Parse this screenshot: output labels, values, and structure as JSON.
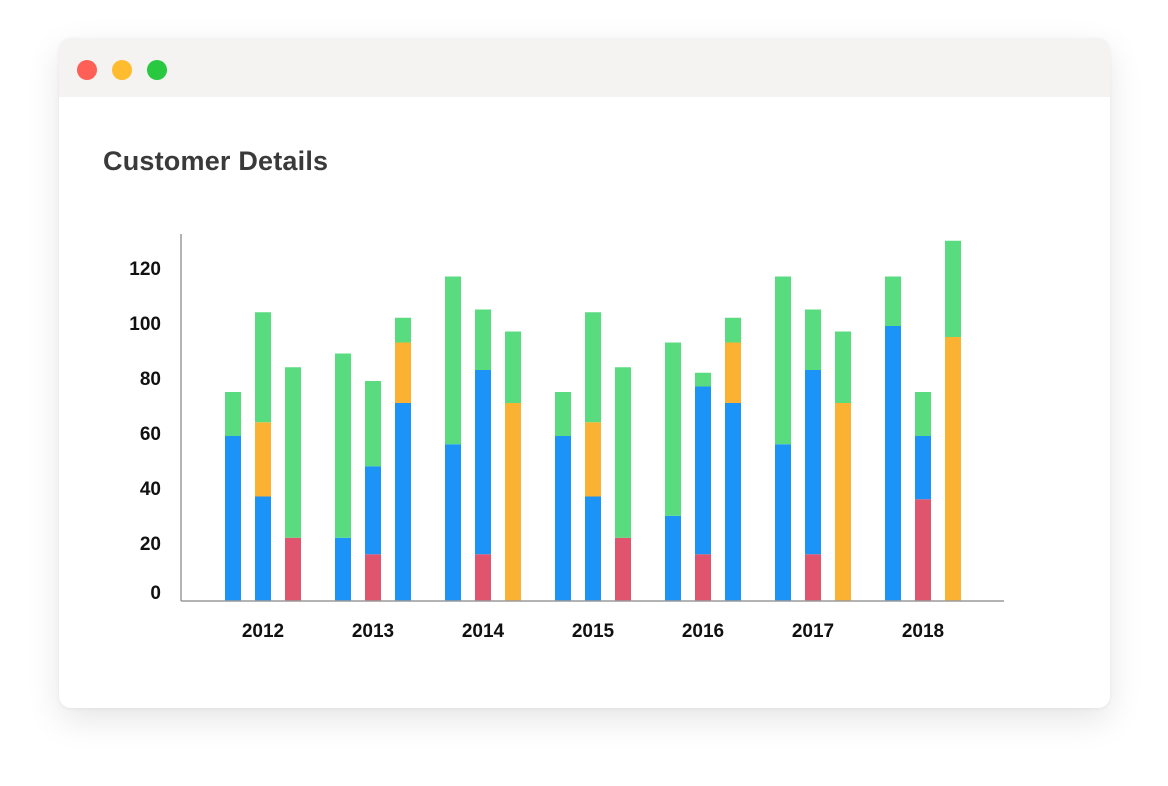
{
  "window": {
    "controls": [
      "close",
      "minimize",
      "maximize"
    ]
  },
  "chart_data": {
    "type": "bar",
    "stacked": true,
    "title": "Customer Details",
    "xlabel": "",
    "ylabel": "",
    "categories": [
      "2012",
      "2013",
      "2014",
      "2015",
      "2016",
      "2017",
      "2018"
    ],
    "bars_per_category": 3,
    "yticks": [
      0,
      20,
      40,
      60,
      80,
      100,
      120
    ],
    "ylim": [
      0,
      132
    ],
    "grid": false,
    "legend": "none",
    "colors": {
      "blue": "#1b93f7",
      "green": "#59dc7f",
      "orange": "#fbb233",
      "red": "#e0556d"
    },
    "bars": [
      [
        {
          "segments": [
            {
              "color": "blue",
              "value": 60
            },
            {
              "color": "green",
              "value": 16
            }
          ]
        },
        {
          "segments": [
            {
              "color": "blue",
              "value": 38
            },
            {
              "color": "orange",
              "value": 27
            },
            {
              "color": "green",
              "value": 40
            }
          ]
        },
        {
          "segments": [
            {
              "color": "red",
              "value": 23
            },
            {
              "color": "green",
              "value": 62
            }
          ]
        }
      ],
      [
        {
          "segments": [
            {
              "color": "blue",
              "value": 23
            },
            {
              "color": "green",
              "value": 67
            }
          ]
        },
        {
          "segments": [
            {
              "color": "red",
              "value": 17
            },
            {
              "color": "blue",
              "value": 32
            },
            {
              "color": "green",
              "value": 31
            }
          ]
        },
        {
          "segments": [
            {
              "color": "blue",
              "value": 72
            },
            {
              "color": "orange",
              "value": 22
            },
            {
              "color": "green",
              "value": 9
            }
          ]
        }
      ],
      [
        {
          "segments": [
            {
              "color": "blue",
              "value": 57
            },
            {
              "color": "green",
              "value": 61
            }
          ]
        },
        {
          "segments": [
            {
              "color": "red",
              "value": 17
            },
            {
              "color": "blue",
              "value": 67
            },
            {
              "color": "green",
              "value": 22
            }
          ]
        },
        {
          "segments": [
            {
              "color": "orange",
              "value": 72
            },
            {
              "color": "green",
              "value": 26
            }
          ]
        }
      ],
      [
        {
          "segments": [
            {
              "color": "blue",
              "value": 60
            },
            {
              "color": "green",
              "value": 16
            }
          ]
        },
        {
          "segments": [
            {
              "color": "blue",
              "value": 38
            },
            {
              "color": "orange",
              "value": 27
            },
            {
              "color": "green",
              "value": 40
            }
          ]
        },
        {
          "segments": [
            {
              "color": "red",
              "value": 23
            },
            {
              "color": "green",
              "value": 62
            }
          ]
        }
      ],
      [
        {
          "segments": [
            {
              "color": "blue",
              "value": 31
            },
            {
              "color": "green",
              "value": 63
            }
          ]
        },
        {
          "segments": [
            {
              "color": "red",
              "value": 17
            },
            {
              "color": "blue",
              "value": 61
            },
            {
              "color": "green",
              "value": 5
            }
          ]
        },
        {
          "segments": [
            {
              "color": "blue",
              "value": 72
            },
            {
              "color": "orange",
              "value": 22
            },
            {
              "color": "green",
              "value": 9
            }
          ]
        }
      ],
      [
        {
          "segments": [
            {
              "color": "blue",
              "value": 57
            },
            {
              "color": "green",
              "value": 61
            }
          ]
        },
        {
          "segments": [
            {
              "color": "red",
              "value": 17
            },
            {
              "color": "blue",
              "value": 67
            },
            {
              "color": "green",
              "value": 22
            }
          ]
        },
        {
          "segments": [
            {
              "color": "orange",
              "value": 72
            },
            {
              "color": "green",
              "value": 26
            }
          ]
        }
      ],
      [
        {
          "segments": [
            {
              "color": "blue",
              "value": 100
            },
            {
              "color": "green",
              "value": 18
            }
          ]
        },
        {
          "segments": [
            {
              "color": "red",
              "value": 37
            },
            {
              "color": "blue",
              "value": 23
            },
            {
              "color": "green",
              "value": 16
            }
          ]
        },
        {
          "segments": [
            {
              "color": "orange",
              "value": 96
            },
            {
              "color": "green",
              "value": 35
            }
          ]
        }
      ]
    ]
  }
}
